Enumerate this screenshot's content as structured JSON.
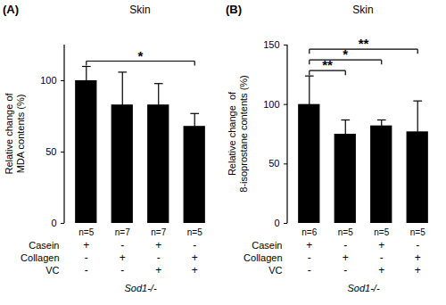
{
  "chart_data": [
    {
      "type": "bar",
      "panel": "(A)",
      "title": "Skin",
      "y_label": "Relative change of\nMDA contents (%)",
      "categories": [
        null,
        null,
        null,
        null
      ],
      "values": [
        100,
        83,
        83,
        68
      ],
      "errors": [
        10,
        23,
        15,
        9
      ],
      "ylim": [
        0,
        125
      ],
      "yticks": [
        0,
        50,
        100
      ],
      "color": "#000000",
      "tick_labels": "y",
      "n_labels": [
        "n=5",
        "n=7",
        "n=7",
        "n=5"
      ],
      "conditions": [
        {
          "name": "Casein",
          "values": [
            "+",
            "-",
            "+",
            "-"
          ]
        },
        {
          "name": "Collagen",
          "values": [
            "-",
            "+",
            "-",
            "+"
          ]
        },
        {
          "name": "VC",
          "values": [
            "-",
            "-",
            "+",
            "+"
          ]
        }
      ],
      "genotype": "Sod1-/-",
      "significance": [
        {
          "from": 0,
          "to": 3,
          "label": "*"
        }
      ]
    },
    {
      "type": "bar",
      "panel": "(B)",
      "title": "Skin",
      "y_label": "Relative change  of\n8-isoprostane contents (%)",
      "categories": [
        null,
        null,
        null,
        null
      ],
      "values": [
        100,
        75,
        82,
        77
      ],
      "errors": [
        24,
        12,
        5,
        26
      ],
      "ylim": [
        0,
        150
      ],
      "yticks": [
        0,
        50,
        100,
        150
      ],
      "color": "#000000",
      "tick_labels": "y",
      "n_labels": [
        "n=6",
        "n=5",
        "n=5",
        "n=5"
      ],
      "conditions": [
        {
          "name": "Casein",
          "values": [
            "+",
            "-",
            "+",
            "-"
          ]
        },
        {
          "name": "Collagen",
          "values": [
            "-",
            "+",
            "-",
            "+"
          ]
        },
        {
          "name": "VC",
          "values": [
            "-",
            "-",
            "+",
            "+"
          ]
        }
      ],
      "genotype": "Sod1-/-",
      "significance": [
        {
          "from": 0,
          "to": 1,
          "label": "**"
        },
        {
          "from": 0,
          "to": 2,
          "label": "*"
        },
        {
          "from": 0,
          "to": 3,
          "label": "**"
        }
      ]
    }
  ]
}
